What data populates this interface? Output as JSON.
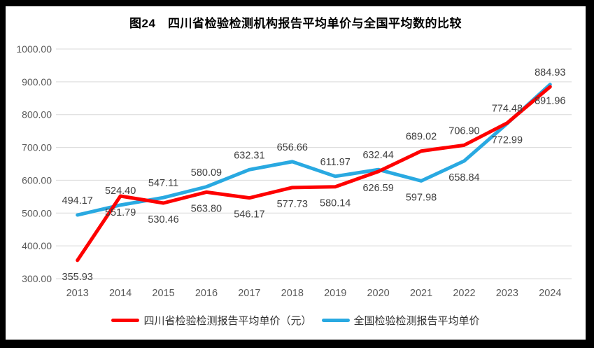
{
  "frame": {
    "border_color": "#000000",
    "panel_background": "#ffffff"
  },
  "title": "图24　四川省检验检测机构报告平均单价与全国平均数的比较",
  "chart_data": {
    "type": "line",
    "title": "图24　四川省检验检测机构报告平均单价与全国平均数的比较",
    "categories": [
      "2013",
      "2014",
      "2015",
      "2016",
      "2017",
      "2018",
      "2019",
      "2020",
      "2021",
      "2022",
      "2023",
      "2024"
    ],
    "series": [
      {
        "name": "四川省检验检测报告平均单价（元）",
        "color": "#fe0000",
        "values": [
          355.93,
          551.79,
          530.46,
          563.8,
          546.17,
          577.73,
          580.14,
          626.59,
          689.02,
          706.9,
          774.48,
          884.93
        ],
        "label_positions": [
          "below",
          "below",
          "below",
          "below",
          "below",
          "below",
          "below",
          "below",
          "above",
          "above",
          "above",
          "above"
        ]
      },
      {
        "name": "全国检验检测报告平均单价",
        "color": "#29a9e1",
        "values": [
          494.17,
          524.4,
          547.11,
          580.09,
          632.31,
          656.66,
          611.97,
          632.44,
          597.98,
          658.84,
          772.99,
          891.96
        ],
        "label_positions": [
          "above",
          "above",
          "above",
          "above",
          "above",
          "above",
          "above",
          "above",
          "below",
          "below",
          "below",
          "below"
        ]
      }
    ],
    "ylim": [
      300,
      1000
    ],
    "yticks": [
      "300.00",
      "400.00",
      "500.00",
      "600.00",
      "700.00",
      "800.00",
      "900.00",
      "1000.00"
    ],
    "xlabel": "",
    "ylabel": "",
    "grid": true,
    "legend_position": "bottom",
    "styles": {
      "gridline_color": "#d9d9d9",
      "axis_label_color": "#595959",
      "data_label_color": "#404040",
      "line_width": 5
    }
  }
}
